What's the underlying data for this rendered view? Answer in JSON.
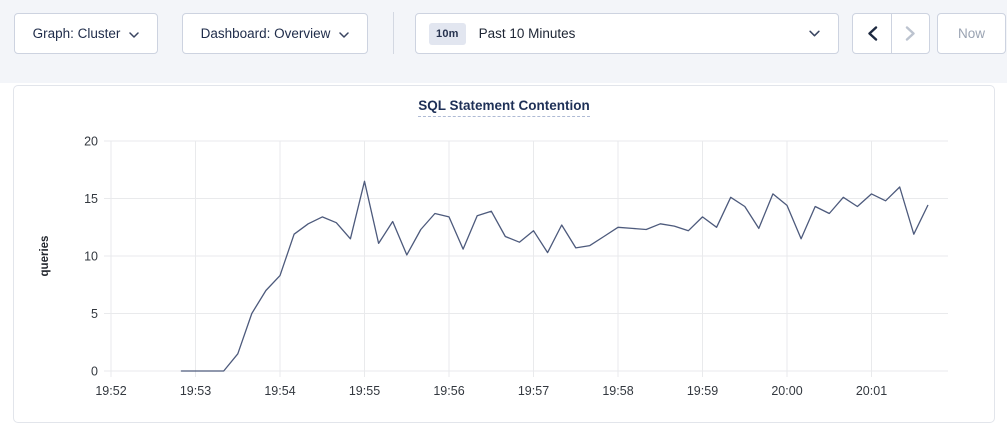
{
  "toolbar": {
    "graph_dropdown": {
      "label": "Graph: Cluster",
      "icon": "chevron-down"
    },
    "dashboard_dropdown": {
      "label": "Dashboard: Overview",
      "icon": "chevron-down"
    },
    "time_picker": {
      "badge": "10m",
      "label": "Past 10 Minutes",
      "icon": "chevron-down"
    },
    "prev_button_icon": "chevron-left",
    "next_button_icon": "chevron-right",
    "now_label": "Now"
  },
  "chart_data": {
    "type": "line",
    "title": "SQL Statement Contention",
    "ylabel": "queries",
    "ylim": [
      0,
      20
    ],
    "yticks": [
      0,
      5,
      10,
      15,
      20
    ],
    "xticks": [
      "19:52",
      "19:53",
      "19:54",
      "19:55",
      "19:56",
      "19:57",
      "19:58",
      "19:59",
      "20:00",
      "20:01"
    ],
    "x_axis_start": "19:52:00",
    "grid": true,
    "legend_position": "none",
    "colors": {
      "line": "#4d5a7c",
      "grid": "#e9eaec",
      "tick_text": "#33383f",
      "axis_label": "#23272e"
    },
    "series": [
      {
        "name": "queries",
        "start_time": "19:52:50",
        "interval_seconds": 10,
        "values": [
          0,
          0,
          0,
          0,
          1.5,
          5,
          7,
          8.3,
          11.9,
          12.8,
          13.4,
          12.9,
          11.5,
          16.5,
          11.1,
          13,
          10.1,
          12.3,
          13.7,
          13.4,
          10.6,
          13.5,
          13.9,
          11.7,
          11.2,
          12.2,
          10.3,
          12.7,
          10.7,
          10.9,
          11.7,
          12.5,
          12.4,
          12.3,
          12.8,
          12.6,
          12.2,
          13.4,
          12.5,
          15.1,
          14.3,
          12.4,
          15.4,
          14.4,
          11.5,
          14.3,
          13.7,
          15.1,
          14.3,
          15.4,
          14.8,
          16,
          11.9,
          14.4
        ]
      }
    ]
  }
}
